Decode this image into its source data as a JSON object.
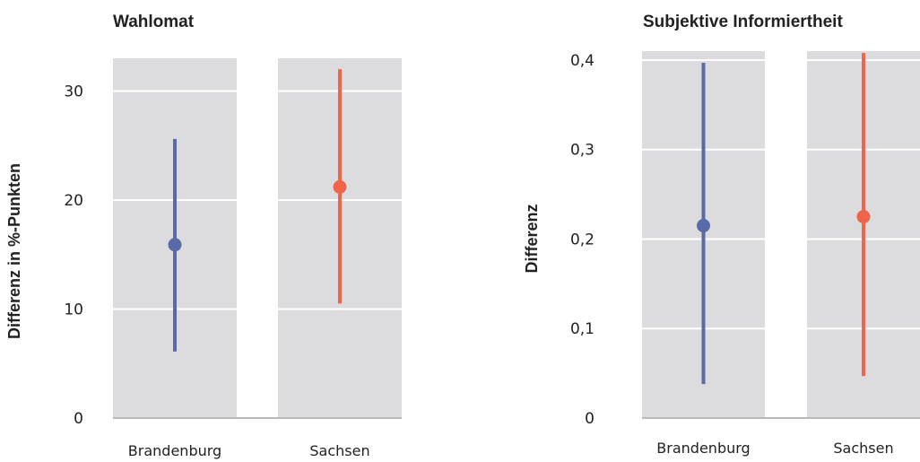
{
  "colors": {
    "panel": "#dcdcde",
    "grid": "#ffffff",
    "baseline": "#b8b8b8",
    "brandenburg": "#5a6aa8",
    "sachsen": "#f0654a"
  },
  "chart_data": [
    {
      "type": "errorbar",
      "title": "Wahlomat",
      "ylabel": "Differenz in %-Punkten",
      "ylim": [
        0,
        33
      ],
      "yticks": [
        0,
        10,
        20,
        30
      ],
      "ytick_labels": [
        "0",
        "10",
        "20",
        "30"
      ],
      "categories": [
        "Brandenburg",
        "Sachsen"
      ],
      "points": [
        {
          "category": "Brandenburg",
          "estimate": 15.9,
          "lower": 6.1,
          "upper": 25.6,
          "color": "#5a6aa8"
        },
        {
          "category": "Sachsen",
          "estimate": 21.2,
          "lower": 10.5,
          "upper": 32.0,
          "color": "#f0654a"
        }
      ]
    },
    {
      "type": "errorbar",
      "title": "Subjektive Informiertheit",
      "ylabel": "Differenz",
      "ylim": [
        0,
        0.41
      ],
      "yticks": [
        0,
        0.1,
        0.2,
        0.3,
        0.4
      ],
      "ytick_labels": [
        "0",
        "0,1",
        "0,2",
        "0,3",
        "0,4"
      ],
      "categories": [
        "Brandenburg",
        "Sachsen"
      ],
      "points": [
        {
          "category": "Brandenburg",
          "estimate": 0.215,
          "lower": 0.038,
          "upper": 0.397,
          "color": "#5a6aa8"
        },
        {
          "category": "Sachsen",
          "estimate": 0.225,
          "lower": 0.047,
          "upper": 0.408,
          "color": "#f0654a"
        }
      ]
    }
  ]
}
